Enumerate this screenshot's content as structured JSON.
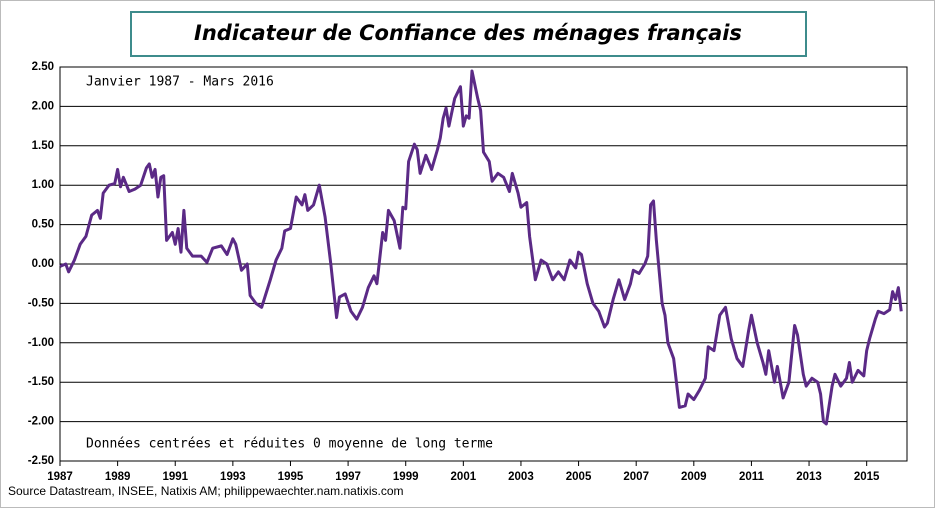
{
  "chart_data": {
    "type": "line",
    "title": "Indicateur de Confiance des ménages français",
    "subtitle": "Janvier 1987 - Mars 2016",
    "annotation": "Données centrées et réduites 0 moyenne de long terme",
    "source": "Source Datastream, INSEE, Natixis AM; philippewaechter.nam.natixis.com",
    "xlim": [
      1987,
      2016.4
    ],
    "xticks": [
      1987,
      1989,
      1991,
      1993,
      1995,
      1997,
      1999,
      2001,
      2003,
      2005,
      2007,
      2009,
      2011,
      2013,
      2015
    ],
    "ylim": [
      -2.5,
      2.5
    ],
    "yticks": [
      {
        "value": -2.5,
        "label": "-2.50"
      },
      {
        "value": -2,
        "label": "-2.00"
      },
      {
        "value": -1.5,
        "label": "-1.50"
      },
      {
        "value": -1,
        "label": "-1.00"
      },
      {
        "value": -0.5,
        "label": "-0.50"
      },
      {
        "value": 0,
        "label": "0.00"
      },
      {
        "value": 0.5,
        "label": "0.50"
      },
      {
        "value": 1,
        "label": "1.00"
      },
      {
        "value": 1.5,
        "label": "1.50"
      },
      {
        "value": 2,
        "label": "2.00"
      },
      {
        "value": 2.5,
        "label": "2.50"
      }
    ],
    "grid": true,
    "color": "#5b2a86",
    "x": [
      1987.0,
      1987.2,
      1987.3,
      1987.5,
      1987.7,
      1987.9,
      1988.1,
      1988.3,
      1988.4,
      1988.5,
      1988.7,
      1988.9,
      1989.0,
      1989.1,
      1989.2,
      1989.4,
      1989.6,
      1989.8,
      1990.0,
      1990.1,
      1990.2,
      1990.3,
      1990.4,
      1990.5,
      1990.6,
      1990.7,
      1990.9,
      1991.0,
      1991.1,
      1991.2,
      1991.3,
      1991.4,
      1991.6,
      1991.9,
      1992.1,
      1992.3,
      1992.6,
      1992.8,
      1993.0,
      1993.1,
      1993.3,
      1993.5,
      1993.6,
      1993.8,
      1994.0,
      1994.3,
      1994.5,
      1994.7,
      1994.8,
      1995.0,
      1995.2,
      1995.4,
      1995.5,
      1995.6,
      1995.8,
      1996.0,
      1996.2,
      1996.4,
      1996.6,
      1996.7,
      1996.9,
      1997.1,
      1997.3,
      1997.5,
      1997.7,
      1997.9,
      1998.0,
      1998.2,
      1998.3,
      1998.4,
      1998.6,
      1998.8,
      1998.9,
      1999.0,
      1999.1,
      1999.3,
      1999.4,
      1999.5,
      1999.7,
      1999.9,
      2000.1,
      2000.2,
      2000.3,
      2000.4,
      2000.5,
      2000.7,
      2000.9,
      2001.0,
      2001.1,
      2001.2,
      2001.3,
      2001.5,
      2001.6,
      2001.7,
      2001.9,
      2002.0,
      2002.2,
      2002.4,
      2002.6,
      2002.7,
      2002.9,
      2003.0,
      2003.2,
      2003.3,
      2003.5,
      2003.7,
      2003.9,
      2004.1,
      2004.3,
      2004.5,
      2004.7,
      2004.9,
      2005.0,
      2005.1,
      2005.3,
      2005.5,
      2005.7,
      2005.9,
      2006.0,
      2006.2,
      2006.4,
      2006.6,
      2006.8,
      2006.9,
      2007.1,
      2007.3,
      2007.4,
      2007.5,
      2007.6,
      2007.7,
      2007.9,
      2008.0,
      2008.1,
      2008.3,
      2008.5,
      2008.7,
      2008.8,
      2009.0,
      2009.2,
      2009.4,
      2009.5,
      2009.7,
      2009.9,
      2010.0,
      2010.1,
      2010.3,
      2010.5,
      2010.7,
      2010.9,
      2011.0,
      2011.2,
      2011.4,
      2011.5,
      2011.6,
      2011.8,
      2011.9,
      2012.1,
      2012.3,
      2012.5,
      2012.6,
      2012.8,
      2012.9,
      2013.1,
      2013.3,
      2013.4,
      2013.5,
      2013.6,
      2013.8,
      2013.9,
      2014.1,
      2014.3,
      2014.4,
      2014.5,
      2014.7,
      2014.9,
      2015.0,
      2015.1,
      2015.3,
      2015.4,
      2015.6,
      2015.8,
      2015.9,
      2016.0,
      2016.1,
      2016.2
    ],
    "values": [
      -0.03,
      0.0,
      -0.1,
      0.05,
      0.25,
      0.35,
      0.62,
      0.68,
      0.58,
      0.9,
      1.0,
      1.02,
      1.2,
      0.98,
      1.1,
      0.92,
      0.95,
      1.0,
      1.22,
      1.27,
      1.1,
      1.2,
      0.85,
      1.1,
      1.12,
      0.3,
      0.4,
      0.25,
      0.45,
      0.15,
      0.68,
      0.2,
      0.1,
      0.1,
      0.02,
      0.2,
      0.23,
      0.12,
      0.32,
      0.25,
      -0.08,
      0.0,
      -0.4,
      -0.5,
      -0.55,
      -0.2,
      0.05,
      0.2,
      0.42,
      0.45,
      0.85,
      0.75,
      0.88,
      0.68,
      0.75,
      1.0,
      0.6,
      0.0,
      -0.68,
      -0.42,
      -0.38,
      -0.6,
      -0.7,
      -0.55,
      -0.3,
      -0.15,
      -0.25,
      0.4,
      0.3,
      0.68,
      0.55,
      0.2,
      0.72,
      0.7,
      1.3,
      1.52,
      1.45,
      1.15,
      1.38,
      1.2,
      1.45,
      1.6,
      1.85,
      1.98,
      1.75,
      2.1,
      2.25,
      1.75,
      1.88,
      1.85,
      2.45,
      2.1,
      1.95,
      1.42,
      1.3,
      1.05,
      1.15,
      1.1,
      0.92,
      1.15,
      0.9,
      0.72,
      0.78,
      0.35,
      -0.2,
      0.05,
      0.0,
      -0.2,
      -0.1,
      -0.2,
      0.05,
      -0.05,
      0.15,
      0.12,
      -0.25,
      -0.5,
      -0.6,
      -0.8,
      -0.75,
      -0.45,
      -0.2,
      -0.45,
      -0.25,
      -0.08,
      -0.12,
      0.0,
      0.1,
      0.75,
      0.8,
      0.3,
      -0.5,
      -0.65,
      -1.0,
      -1.2,
      -1.82,
      -1.8,
      -1.65,
      -1.72,
      -1.6,
      -1.45,
      -1.05,
      -1.1,
      -0.65,
      -0.6,
      -0.55,
      -0.95,
      -1.2,
      -1.3,
      -0.85,
      -0.65,
      -1.0,
      -1.25,
      -1.4,
      -1.1,
      -1.5,
      -1.3,
      -1.7,
      -1.5,
      -0.78,
      -0.9,
      -1.4,
      -1.55,
      -1.45,
      -1.5,
      -1.65,
      -2.0,
      -2.03,
      -1.55,
      -1.4,
      -1.55,
      -1.45,
      -1.25,
      -1.5,
      -1.35,
      -1.42,
      -1.1,
      -0.95,
      -0.7,
      -0.6,
      -0.63,
      -0.58,
      -0.35,
      -0.45,
      -0.3,
      -0.6
    ]
  }
}
